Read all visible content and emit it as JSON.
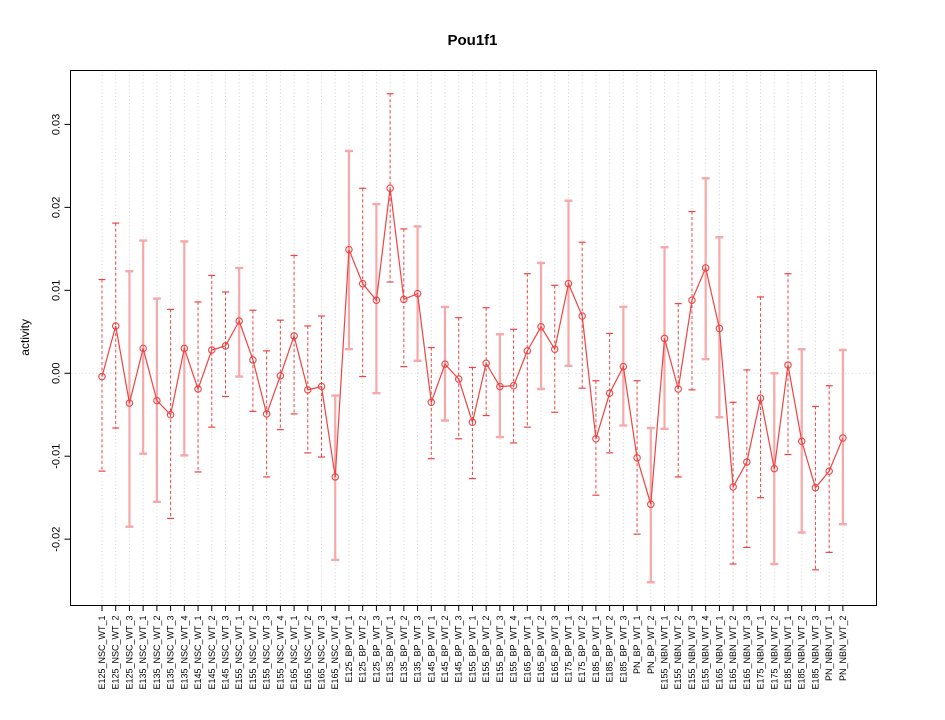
{
  "chart_data": {
    "type": "line",
    "subtype": "points-with-error-bars",
    "title": "Pou1f1",
    "xlabel": "",
    "ylabel": "activity",
    "legend": "none",
    "grid": "vertical-dotted-per-category-plus-dotted-zero-line",
    "ylim": [
      -0.028,
      0.0365
    ],
    "yticks": [
      0.03,
      0.02,
      0.01,
      0.0,
      -0.01,
      -0.02
    ],
    "zero_reference_line": 0,
    "categories": [
      "E125_NSC_WT_1",
      "E125_NSC_WT_2",
      "E125_NSC_WT_3",
      "E135_NSC_WT_1",
      "E135_NSC_WT_2",
      "E135_NSC_WT_3",
      "E135_NSC_WT_4",
      "E145_NSC_WT_1",
      "E145_NSC_WT_2",
      "E145_NSC_WT_3",
      "E155_NSC_WT_1",
      "E155_NSC_WT_2",
      "E155_NSC_WT_3",
      "E155_NSC_WT_4",
      "E165_NSC_WT_1",
      "E165_NSC_WT_2",
      "E165_NSC_WT_3",
      "E165_NSC_WT_4",
      "E125_BP_WT_1",
      "E125_BP_WT_2",
      "E125_BP_WT_3",
      "E135_BP_WT_1",
      "E135_BP_WT_2",
      "E135_BP_WT_3",
      "E145_BP_WT_1",
      "E145_BP_WT_2",
      "E145_BP_WT_3",
      "E155_BP_WT_1",
      "E155_BP_WT_2",
      "E155_BP_WT_3",
      "E155_BP_WT_4",
      "E165_BP_WT_1",
      "E165_BP_WT_2",
      "E165_BP_WT_3",
      "E175_BP_WT_1",
      "E175_BP_WT_2",
      "E185_BP_WT_1",
      "E185_BP_WT_2",
      "E185_BP_WT_3",
      "PN_BP_WT_1",
      "PN_BP_WT_2",
      "E155_NBN_WT_1",
      "E155_NBN_WT_2",
      "E155_NBN_WT_3",
      "E155_NBN_WT_4",
      "E165_NBN_WT_1",
      "E165_NBN_WT_2",
      "E165_NBN_WT_3",
      "E175_NBN_WT_1",
      "E175_NBN_WT_2",
      "E185_NBN_WT_1",
      "E185_NBN_WT_2",
      "E185_NBN_WT_3",
      "PN_NBN_WT_1",
      "PN_NBN_WT_2"
    ],
    "series": [
      {
        "name": "activity",
        "values": [
          -0.0004,
          0.0057,
          -0.0036,
          0.003,
          -0.0033,
          -0.005,
          0.003,
          -0.0019,
          0.0028,
          0.0033,
          0.0063,
          0.0016,
          -0.0049,
          -0.0003,
          0.0045,
          -0.002,
          -0.0016,
          -0.0125,
          0.0149,
          0.0108,
          0.0088,
          0.0223,
          0.0089,
          0.0096,
          -0.0035,
          0.0011,
          -0.0007,
          -0.0059,
          0.0012,
          -0.0016,
          -0.0015,
          0.0027,
          0.0056,
          0.0029,
          0.0108,
          0.0069,
          -0.0079,
          -0.0024,
          0.0008,
          -0.0102,
          -0.0158,
          0.0042,
          -0.0019,
          0.0088,
          0.0127,
          0.0054,
          -0.0137,
          -0.0107,
          -0.003,
          -0.0115,
          0.001,
          -0.0082,
          -0.0138,
          -0.0118,
          -0.0078
        ]
      }
    ],
    "error_high": [
      0.0113,
      0.0181,
      0.0123,
      0.016,
      0.009,
      0.0077,
      0.0159,
      0.0086,
      0.0118,
      0.0098,
      0.0127,
      0.0076,
      0.0027,
      0.0064,
      0.0142,
      0.0057,
      0.0069,
      -0.0027,
      0.0268,
      0.0223,
      0.0204,
      0.0337,
      0.0174,
      0.0177,
      0.0031,
      0.008,
      0.0067,
      0.0007,
      0.0079,
      0.0047,
      0.0053,
      0.012,
      0.0133,
      0.0106,
      0.0208,
      0.0158,
      -0.0009,
      0.0048,
      0.008,
      -0.0009,
      -0.0066,
      0.0152,
      0.0084,
      0.0195,
      0.0235,
      0.0164,
      -0.0035,
      0.0004,
      0.0092,
      0.0,
      0.012,
      0.0029,
      -0.004,
      -0.0015,
      0.0028
    ],
    "error_low": [
      -0.0118,
      -0.0066,
      -0.0185,
      -0.0097,
      -0.0155,
      -0.0175,
      -0.0099,
      -0.0119,
      -0.0065,
      -0.0028,
      -0.0004,
      -0.0046,
      -0.0125,
      -0.0068,
      -0.0049,
      -0.0096,
      -0.0101,
      -0.0225,
      0.0029,
      -0.0004,
      -0.0024,
      0.011,
      0.0008,
      0.0015,
      -0.0103,
      -0.0057,
      -0.0079,
      -0.0127,
      -0.0051,
      -0.0077,
      -0.0084,
      -0.0065,
      -0.0019,
      -0.0047,
      0.0009,
      -0.0018,
      -0.0147,
      -0.0096,
      -0.0063,
      -0.0194,
      -0.0252,
      -0.0067,
      -0.0125,
      -0.002,
      0.0017,
      -0.0053,
      -0.023,
      -0.021,
      -0.015,
      -0.023,
      -0.0098,
      -0.0192,
      -0.0237,
      -0.0216,
      -0.0182
    ],
    "bar_styles": [
      "red",
      "red",
      "pink",
      "pink",
      "pink",
      "red",
      "pink",
      "red",
      "red",
      "red",
      "pink",
      "red",
      "red",
      "red",
      "red",
      "red",
      "red",
      "pink",
      "pink",
      "red",
      "pink",
      "red",
      "red",
      "pink",
      "red",
      "pink",
      "red",
      "red",
      "red",
      "pink",
      "red",
      "red",
      "pink",
      "red",
      "pink",
      "red",
      "red",
      "red",
      "pink",
      "red",
      "pink",
      "pink",
      "red",
      "red",
      "pink",
      "pink",
      "red",
      "red",
      "red",
      "pink",
      "red",
      "pink",
      "red",
      "red",
      "pink"
    ],
    "colors": {
      "point": "#f04343",
      "line": "#f04343",
      "bar_red": "#ee4444",
      "bar_pink": "#f7a8a8",
      "grid": "#d4d4d4",
      "axis": "#000000",
      "background": "#ffffff"
    }
  }
}
